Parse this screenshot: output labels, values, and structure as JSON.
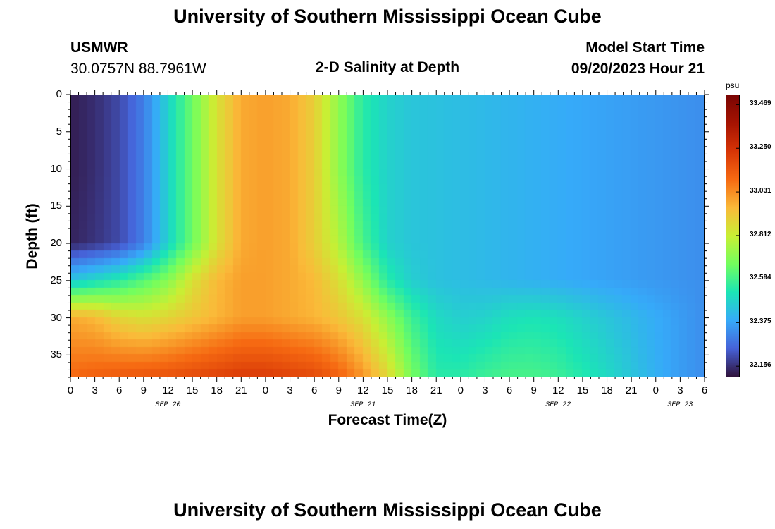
{
  "header": {
    "title": "University of Southern Mississippi Ocean Cube",
    "station": "USMWR",
    "coords": "30.0757N  88.7961W",
    "plot_title": "2-D Salinity at Depth",
    "model_label": "Model Start Time",
    "model_time": "09/20/2023 Hour 21"
  },
  "footer": {
    "title": "University of Southern Mississippi Ocean Cube"
  },
  "chart_data": {
    "type": "heatmap",
    "title": "2-D Salinity at Depth",
    "xlabel": "Forecast Time(Z)",
    "ylabel": "Depth (ft)",
    "x_hours_range": [
      0,
      78
    ],
    "ylim": [
      38,
      0
    ],
    "x_tick_labels": [
      "0",
      "3",
      "6",
      "9",
      "12",
      "15",
      "18",
      "21",
      "0",
      "3",
      "6",
      "9",
      "12",
      "15",
      "18",
      "21",
      "0",
      "3",
      "6",
      "9",
      "12",
      "15",
      "18",
      "21",
      "0",
      "3",
      "6"
    ],
    "date_labels": [
      {
        "label": "SEP 20",
        "hour": 12
      },
      {
        "label": "SEP 21",
        "hour": 36
      },
      {
        "label": "SEP 22",
        "hour": 60
      },
      {
        "label": "SEP 23",
        "hour": 75
      }
    ],
    "y_ticks": [
      0,
      5,
      10,
      15,
      20,
      25,
      30,
      35
    ],
    "colorbar": {
      "unit": "psu",
      "range": [
        32.1,
        33.52
      ],
      "tick_labels": [
        "33.469",
        "33.250",
        "33.031",
        "32.812",
        "32.594",
        "32.375",
        "32.156"
      ],
      "tick_values": [
        33.469,
        33.25,
        33.031,
        32.812,
        32.594,
        32.375,
        32.156
      ]
    },
    "salinity_psu_by_depth": {
      "x_hours": [
        0,
        3,
        6,
        9,
        12,
        15,
        18,
        21,
        24,
        27,
        30,
        33,
        36,
        39,
        42,
        45,
        48,
        51,
        54,
        57,
        60,
        63,
        66,
        69,
        72,
        75,
        78
      ],
      "rows": [
        {
          "depth": 0,
          "values": [
            32.12,
            32.15,
            32.2,
            32.3,
            32.48,
            32.66,
            32.85,
            32.98,
            33.0,
            32.98,
            32.9,
            32.72,
            32.55,
            32.48,
            32.45,
            32.44,
            32.43,
            32.42,
            32.41,
            32.4,
            32.39,
            32.38,
            32.37,
            32.36,
            32.35,
            32.34,
            32.33
          ]
        },
        {
          "depth": 10,
          "values": [
            32.12,
            32.15,
            32.2,
            32.3,
            32.48,
            32.66,
            32.85,
            32.98,
            33.0,
            32.98,
            32.9,
            32.72,
            32.55,
            32.48,
            32.45,
            32.44,
            32.43,
            32.42,
            32.41,
            32.4,
            32.39,
            32.38,
            32.37,
            32.36,
            32.35,
            32.34,
            32.33
          ]
        },
        {
          "depth": 20,
          "values": [
            32.13,
            32.16,
            32.2,
            32.3,
            32.48,
            32.66,
            32.85,
            32.98,
            33.0,
            32.98,
            32.9,
            32.78,
            32.6,
            32.48,
            32.45,
            32.44,
            32.43,
            32.42,
            32.41,
            32.4,
            32.39,
            32.38,
            32.37,
            32.36,
            32.35,
            32.34,
            32.33
          ]
        },
        {
          "depth": 25,
          "values": [
            32.45,
            32.5,
            32.55,
            32.62,
            32.7,
            32.85,
            32.95,
            33.0,
            33.0,
            32.98,
            32.95,
            32.86,
            32.72,
            32.55,
            32.47,
            32.44,
            32.43,
            32.42,
            32.41,
            32.4,
            32.39,
            32.38,
            32.37,
            32.36,
            32.35,
            32.34,
            32.33
          ]
        },
        {
          "depth": 30,
          "values": [
            32.98,
            32.95,
            32.88,
            32.85,
            32.88,
            32.92,
            32.96,
            33.0,
            33.0,
            32.98,
            32.96,
            32.92,
            32.85,
            32.72,
            32.58,
            32.5,
            32.47,
            32.48,
            32.51,
            32.52,
            32.51,
            32.48,
            32.45,
            32.42,
            32.39,
            32.36,
            32.33
          ]
        },
        {
          "depth": 38,
          "values": [
            33.1,
            33.12,
            33.14,
            33.15,
            33.16,
            33.18,
            33.2,
            33.22,
            33.22,
            33.2,
            33.18,
            33.12,
            33.02,
            32.88,
            32.68,
            32.55,
            32.55,
            32.58,
            32.6,
            32.6,
            32.58,
            32.54,
            32.5,
            32.45,
            32.4,
            32.36,
            32.33
          ]
        }
      ]
    }
  }
}
